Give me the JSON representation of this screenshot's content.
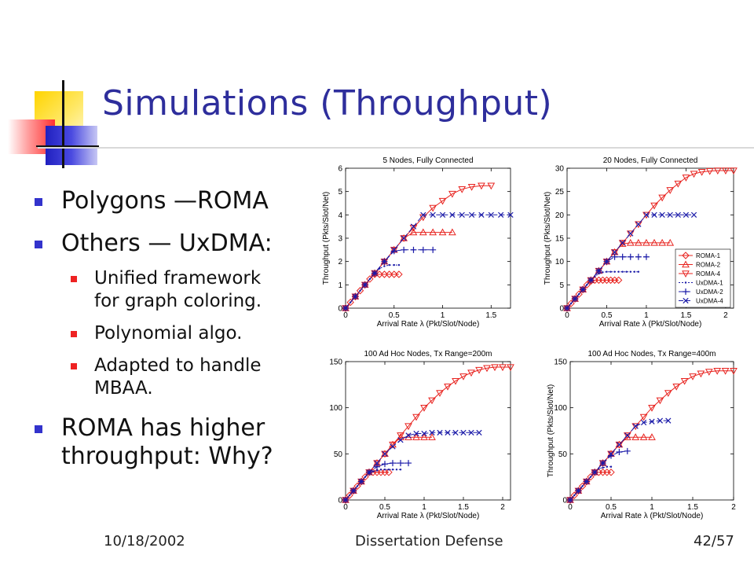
{
  "slide": {
    "title": "Simulations (Throughput)",
    "bullets": [
      {
        "level": 1,
        "text": "Polygons —ROMA"
      },
      {
        "level": 1,
        "text": "Others — UxDMA:"
      },
      {
        "level": 2,
        "text": "Unified framework\nfor graph coloring."
      },
      {
        "level": 2,
        "text": "Polynomial algo."
      },
      {
        "level": 2,
        "text": "Adapted to handle\nMBAA."
      },
      {
        "level": 1,
        "text": "ROMA has higher\nthroughput: Why?"
      }
    ],
    "footer": {
      "date": "10/18/2002",
      "title": "Dissertation Defense",
      "page": "42/57"
    }
  },
  "chart_data": [
    {
      "type": "line",
      "title": "5 Nodes, Fully Connected",
      "xlabel": "Arrival Rate λ (Pkt/Slot/Node)",
      "ylabel": "Throughput (Pkts/Slot/Net)",
      "xlim": [
        0,
        1.7
      ],
      "ylim": [
        0,
        6
      ],
      "xticks": [
        0,
        0.5,
        1,
        1.5
      ],
      "yticks": [
        0,
        1,
        2,
        3,
        4,
        5,
        6
      ],
      "legend": false,
      "series": [
        {
          "name": "ROMA-1",
          "marker": "diamond",
          "color": "#e8231f",
          "x": [
            0,
            0.05,
            0.1,
            0.15,
            0.2,
            0.25,
            0.3,
            0.35,
            0.4,
            0.45,
            0.5,
            0.55
          ],
          "y": [
            0,
            0.25,
            0.5,
            0.75,
            1.0,
            1.25,
            1.45,
            1.45,
            1.45,
            1.45,
            1.45,
            1.45
          ]
        },
        {
          "name": "ROMA-2",
          "marker": "triangle-up",
          "color": "#e8231f",
          "x": [
            0,
            0.1,
            0.2,
            0.3,
            0.4,
            0.5,
            0.6,
            0.7,
            0.8,
            0.9,
            1.0,
            1.1
          ],
          "y": [
            0,
            0.5,
            1.0,
            1.5,
            2.0,
            2.5,
            3.0,
            3.25,
            3.25,
            3.25,
            3.25,
            3.25
          ]
        },
        {
          "name": "ROMA-4",
          "marker": "triangle-down",
          "color": "#e8231f",
          "x": [
            0,
            0.1,
            0.2,
            0.3,
            0.4,
            0.5,
            0.6,
            0.7,
            0.8,
            0.9,
            1.0,
            1.1,
            1.2,
            1.3,
            1.4,
            1.5
          ],
          "y": [
            0,
            0.5,
            1.0,
            1.5,
            2.0,
            2.5,
            3.0,
            3.45,
            3.9,
            4.3,
            4.6,
            4.9,
            5.1,
            5.2,
            5.25,
            5.25
          ]
        },
        {
          "name": "UxDMA-1",
          "marker": "dot",
          "color": "#1a1aa8",
          "x": [
            0,
            0.05,
            0.1,
            0.15,
            0.2,
            0.25,
            0.3,
            0.35,
            0.4,
            0.45,
            0.5,
            0.55
          ],
          "y": [
            0,
            0.25,
            0.5,
            0.75,
            1.0,
            1.25,
            1.5,
            1.7,
            1.8,
            1.85,
            1.85,
            1.85
          ]
        },
        {
          "name": "UxDMA-2",
          "marker": "plus",
          "color": "#1a1aa8",
          "x": [
            0,
            0.1,
            0.2,
            0.3,
            0.4,
            0.5,
            0.6,
            0.7,
            0.8,
            0.9
          ],
          "y": [
            0,
            0.5,
            1.0,
            1.5,
            2.0,
            2.45,
            2.5,
            2.5,
            2.5,
            2.5
          ]
        },
        {
          "name": "UxDMA-4",
          "marker": "x",
          "color": "#1a1aa8",
          "x": [
            0,
            0.1,
            0.2,
            0.3,
            0.4,
            0.5,
            0.6,
            0.7,
            0.8,
            0.9,
            1.0,
            1.1,
            1.2,
            1.3,
            1.4,
            1.5,
            1.6,
            1.7
          ],
          "y": [
            0,
            0.5,
            1.0,
            1.5,
            2.0,
            2.5,
            3.0,
            3.5,
            4.0,
            4.0,
            4.0,
            4.0,
            4.0,
            4.0,
            4.0,
            4.0,
            4.0,
            4.0
          ]
        }
      ]
    },
    {
      "type": "line",
      "title": "20 Nodes, Fully Connected",
      "xlabel": "Arrival Rate λ (Pkt/Slot/Node)",
      "ylabel": "Throughput (Pkts/Slot/Net)",
      "xlim": [
        0,
        2.1
      ],
      "ylim": [
        0,
        30
      ],
      "xticks": [
        0,
        0.5,
        1,
        1.5,
        2
      ],
      "yticks": [
        0,
        5,
        10,
        15,
        20,
        25,
        30
      ],
      "legend": true,
      "legend_position": "right",
      "series": [
        {
          "name": "ROMA-1",
          "marker": "diamond",
          "color": "#e8231f",
          "x": [
            0,
            0.05,
            0.1,
            0.15,
            0.2,
            0.25,
            0.3,
            0.35,
            0.4,
            0.45,
            0.5,
            0.55,
            0.6,
            0.65
          ],
          "y": [
            0,
            1,
            2,
            3,
            4,
            5,
            5.8,
            6,
            6,
            6,
            6,
            6,
            6,
            6
          ]
        },
        {
          "name": "ROMA-2",
          "marker": "triangle-up",
          "color": "#e8231f",
          "x": [
            0,
            0.1,
            0.2,
            0.3,
            0.4,
            0.5,
            0.6,
            0.7,
            0.8,
            0.9,
            1.0,
            1.1,
            1.2,
            1.3
          ],
          "y": [
            0,
            2,
            4,
            6,
            8,
            10,
            12,
            13.8,
            14,
            14,
            14,
            14,
            14,
            14
          ]
        },
        {
          "name": "ROMA-4",
          "marker": "triangle-down",
          "color": "#e8231f",
          "x": [
            0,
            0.1,
            0.2,
            0.3,
            0.4,
            0.5,
            0.6,
            0.7,
            0.8,
            0.9,
            1.0,
            1.1,
            1.2,
            1.3,
            1.4,
            1.5,
            1.6,
            1.7,
            1.8,
            1.9,
            2.0,
            2.1
          ],
          "y": [
            0,
            2,
            4,
            6,
            8,
            10,
            12,
            14,
            16,
            18,
            20,
            22,
            23.7,
            25.3,
            26.7,
            28,
            28.8,
            29.2,
            29.4,
            29.5,
            29.5,
            29.5
          ]
        },
        {
          "name": "UxDMA-1",
          "marker": "dot",
          "color": "#1a1aa8",
          "x": [
            0,
            0.05,
            0.1,
            0.15,
            0.2,
            0.25,
            0.3,
            0.35,
            0.4,
            0.45,
            0.5,
            0.55,
            0.6,
            0.65,
            0.7,
            0.75,
            0.8,
            0.85,
            0.9
          ],
          "y": [
            0,
            1,
            2,
            3,
            4,
            5,
            6,
            6.8,
            7.4,
            7.7,
            7.8,
            7.8,
            7.8,
            7.8,
            7.8,
            7.8,
            7.8,
            7.8,
            7.8
          ]
        },
        {
          "name": "UxDMA-2",
          "marker": "plus",
          "color": "#1a1aa8",
          "x": [
            0,
            0.1,
            0.2,
            0.3,
            0.4,
            0.5,
            0.6,
            0.7,
            0.8,
            0.9,
            1.0
          ],
          "y": [
            0,
            2,
            4,
            6,
            8,
            10,
            11,
            11,
            11,
            11,
            11
          ]
        },
        {
          "name": "UxDMA-4",
          "marker": "x",
          "color": "#1a1aa8",
          "x": [
            0,
            0.1,
            0.2,
            0.3,
            0.4,
            0.5,
            0.6,
            0.7,
            0.8,
            0.9,
            1.0,
            1.1,
            1.2,
            1.3,
            1.4,
            1.5,
            1.6
          ],
          "y": [
            0,
            2,
            4,
            6,
            8,
            10,
            12,
            14,
            16,
            18,
            20,
            20,
            20,
            20,
            20,
            20,
            20
          ]
        }
      ]
    },
    {
      "type": "line",
      "title": "100 Ad Hoc Nodes, Tx Range=200m",
      "xlabel": "Arrival Rate λ (Pkt/Slot/Node)",
      "ylabel": "",
      "xlim": [
        0,
        2.1
      ],
      "ylim": [
        0,
        150
      ],
      "xticks": [
        0,
        0.5,
        1,
        1.5,
        2
      ],
      "yticks": [
        0,
        50,
        100,
        150
      ],
      "legend": false,
      "series": [
        {
          "name": "ROMA-1",
          "marker": "diamond",
          "color": "#e8231f",
          "x": [
            0,
            0.05,
            0.1,
            0.15,
            0.2,
            0.25,
            0.3,
            0.35,
            0.4,
            0.45,
            0.5,
            0.55
          ],
          "y": [
            0,
            5,
            10,
            15,
            20,
            25,
            30,
            30,
            30,
            30,
            30,
            30
          ]
        },
        {
          "name": "ROMA-2",
          "marker": "triangle-up",
          "color": "#e8231f",
          "x": [
            0,
            0.1,
            0.2,
            0.3,
            0.4,
            0.5,
            0.6,
            0.7,
            0.8,
            0.9,
            1.0,
            1.1
          ],
          "y": [
            0,
            10,
            20,
            30,
            40,
            50,
            60,
            68,
            68,
            68,
            68,
            68
          ]
        },
        {
          "name": "ROMA-4",
          "marker": "triangle-down",
          "color": "#e8231f",
          "x": [
            0,
            0.1,
            0.2,
            0.3,
            0.4,
            0.5,
            0.6,
            0.7,
            0.8,
            0.9,
            1.0,
            1.1,
            1.2,
            1.3,
            1.4,
            1.5,
            1.6,
            1.7,
            1.8,
            1.9,
            2.0,
            2.1
          ],
          "y": [
            0,
            10,
            20,
            30,
            40,
            50,
            60,
            70,
            80,
            90,
            100,
            108,
            116,
            123,
            129,
            134,
            138,
            141,
            143,
            144,
            144,
            144
          ]
        },
        {
          "name": "UxDMA-1",
          "marker": "dot",
          "color": "#1a1aa8",
          "x": [
            0,
            0.05,
            0.1,
            0.15,
            0.2,
            0.25,
            0.3,
            0.35,
            0.4,
            0.45,
            0.5,
            0.55,
            0.6,
            0.65,
            0.7
          ],
          "y": [
            0,
            5,
            10,
            15,
            20,
            25,
            29,
            31,
            32,
            33,
            33,
            33,
            33,
            33,
            33
          ]
        },
        {
          "name": "UxDMA-2",
          "marker": "plus",
          "color": "#1a1aa8",
          "x": [
            0,
            0.1,
            0.2,
            0.3,
            0.4,
            0.5,
            0.6,
            0.7,
            0.8
          ],
          "y": [
            0,
            10,
            20,
            30,
            36,
            39,
            40,
            40,
            40
          ]
        },
        {
          "name": "UxDMA-4",
          "marker": "x",
          "color": "#1a1aa8",
          "x": [
            0,
            0.1,
            0.2,
            0.3,
            0.4,
            0.5,
            0.6,
            0.7,
            0.8,
            0.9,
            1.0,
            1.1,
            1.2,
            1.3,
            1.4,
            1.5,
            1.6,
            1.7
          ],
          "y": [
            0,
            10,
            20,
            30,
            40,
            50,
            58,
            65,
            70,
            72,
            72,
            73,
            73,
            73,
            73,
            73,
            73,
            73
          ]
        }
      ]
    },
    {
      "type": "line",
      "title": "100 Ad Hoc Nodes, Tx Range=400m",
      "xlabel": "Arrival Rate λ (Pkt/Slot/Node)",
      "ylabel": "Throughput (Pkts/Slot/Net)",
      "xlim": [
        0,
        2.0
      ],
      "ylim": [
        0,
        150
      ],
      "xticks": [
        0,
        0.5,
        1,
        1.5,
        2
      ],
      "yticks": [
        0,
        50,
        100,
        150
      ],
      "legend": false,
      "series": [
        {
          "name": "ROMA-1",
          "marker": "diamond",
          "color": "#e8231f",
          "x": [
            0,
            0.05,
            0.1,
            0.15,
            0.2,
            0.25,
            0.3,
            0.35,
            0.4,
            0.45,
            0.5
          ],
          "y": [
            0,
            5,
            10,
            15,
            20,
            25,
            30,
            30,
            30,
            30,
            30
          ]
        },
        {
          "name": "ROMA-2",
          "marker": "triangle-up",
          "color": "#e8231f",
          "x": [
            0,
            0.1,
            0.2,
            0.3,
            0.4,
            0.5,
            0.6,
            0.7,
            0.8,
            0.9,
            1.0
          ],
          "y": [
            0,
            10,
            20,
            30,
            40,
            50,
            60,
            68,
            68,
            68,
            68
          ]
        },
        {
          "name": "ROMA-4",
          "marker": "triangle-down",
          "color": "#e8231f",
          "x": [
            0,
            0.1,
            0.2,
            0.3,
            0.4,
            0.5,
            0.6,
            0.7,
            0.8,
            0.9,
            1.0,
            1.1,
            1.2,
            1.3,
            1.4,
            1.5,
            1.6,
            1.7,
            1.8,
            1.9,
            2.0
          ],
          "y": [
            0,
            10,
            20,
            30,
            40,
            50,
            60,
            70,
            80,
            90,
            100,
            108,
            116,
            123,
            129,
            134,
            137,
            139,
            140,
            140,
            140
          ]
        },
        {
          "name": "UxDMA-1",
          "marker": "dot",
          "color": "#1a1aa8",
          "x": [
            0,
            0.05,
            0.1,
            0.15,
            0.2,
            0.25,
            0.3,
            0.35,
            0.4,
            0.45,
            0.5
          ],
          "y": [
            0,
            5,
            10,
            15,
            20,
            25,
            30,
            34,
            35,
            36,
            36
          ]
        },
        {
          "name": "UxDMA-2",
          "marker": "plus",
          "color": "#1a1aa8",
          "x": [
            0,
            0.1,
            0.2,
            0.3,
            0.4,
            0.5,
            0.6,
            0.7
          ],
          "y": [
            0,
            10,
            20,
            30,
            40,
            48,
            52,
            53
          ]
        },
        {
          "name": "UxDMA-4",
          "marker": "x",
          "color": "#1a1aa8",
          "x": [
            0,
            0.1,
            0.2,
            0.3,
            0.4,
            0.5,
            0.6,
            0.7,
            0.8,
            0.9,
            1.0,
            1.1,
            1.2
          ],
          "y": [
            0,
            10,
            20,
            30,
            40,
            50,
            60,
            70,
            80,
            84,
            85,
            86,
            86
          ]
        }
      ]
    }
  ]
}
